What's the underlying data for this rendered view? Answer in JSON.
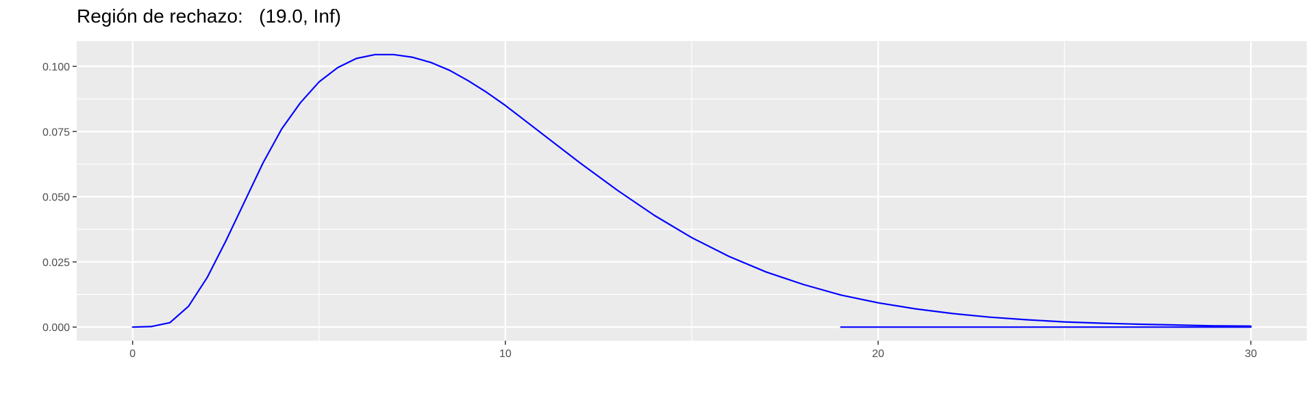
{
  "chart_data": {
    "type": "line",
    "title": "Región de rechazo:   (19.0, Inf)",
    "xlabel": "",
    "ylabel": "",
    "xlim": [
      -1.5,
      31.5
    ],
    "ylim": [
      -0.0052,
      0.1097
    ],
    "x_ticks": [
      0,
      10,
      20,
      30
    ],
    "x_tick_labels": [
      "0",
      "10",
      "20",
      "30"
    ],
    "y_ticks": [
      0.0,
      0.025,
      0.05,
      0.075,
      0.1
    ],
    "y_tick_labels": [
      "0.000",
      "0.025",
      "0.050",
      "0.075",
      "0.100"
    ],
    "grid": true,
    "legend": "none",
    "colors": {
      "line": "#0000ff",
      "panel_background": "#ebebeb",
      "grid": "#ffffff",
      "axis_text": "#4d4d4d"
    },
    "series": [
      {
        "x": [
          0,
          0.5,
          1,
          1.5,
          2,
          2.5,
          3,
          3.5,
          4,
          4.5,
          5,
          5.5,
          6,
          6.5,
          7,
          7.5,
          8,
          8.5,
          9,
          9.5,
          10,
          11,
          12,
          13,
          14,
          15,
          16,
          17,
          18,
          19,
          20,
          21,
          22,
          23,
          24,
          25,
          26,
          27,
          28,
          29,
          30
        ],
        "values": [
          0.0,
          0.0002,
          0.0017,
          0.008,
          0.019,
          0.033,
          0.048,
          0.063,
          0.076,
          0.086,
          0.094,
          0.0995,
          0.103,
          0.1045,
          0.1045,
          0.1035,
          0.1015,
          0.0985,
          0.0945,
          0.09,
          0.085,
          0.074,
          0.063,
          0.0525,
          0.0428,
          0.0343,
          0.0271,
          0.0211,
          0.0163,
          0.0123,
          0.0093,
          0.007,
          0.0052,
          0.0038,
          0.0028,
          0.002,
          0.0015,
          0.0011,
          0.0008,
          0.0005,
          0.0004
        ]
      },
      {
        "x": [
          19,
          20,
          21,
          22,
          23,
          24,
          25,
          26,
          27,
          28,
          29,
          30
        ],
        "values": [
          0,
          0,
          0,
          0,
          0,
          0,
          0,
          0,
          0,
          0,
          0,
          0
        ]
      }
    ]
  }
}
